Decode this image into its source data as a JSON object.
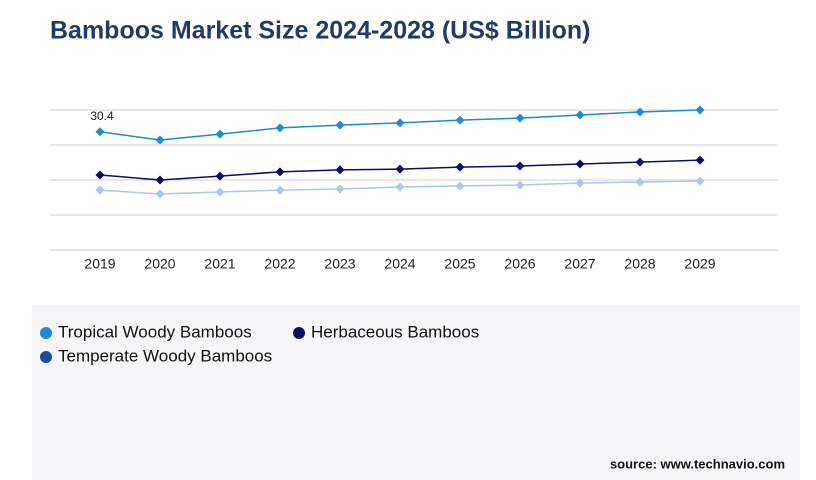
{
  "chart_data": {
    "type": "line",
    "title": "Bamboos Market Size 2024-2028 (US$ Billion)",
    "source": "source: www.technavio.com",
    "categories": [
      "2019",
      "2020",
      "2021",
      "2022",
      "2023",
      "2024",
      "2025",
      "2026",
      "2027",
      "2028",
      "2029"
    ],
    "series": [
      {
        "name": "Tropical Woody Bamboos",
        "color": "#1f8ad8",
        "legend_color": "#1f8ad8",
        "values": [
          30.4,
          28.3,
          29.8,
          31.4,
          32.1,
          32.7,
          33.4,
          33.9,
          34.7,
          35.5,
          36.0
        ]
      },
      {
        "name": "Herbaceous Bamboos",
        "color": "#0d0d6b",
        "legend_color": "#0d0d6b",
        "values": [
          19.3,
          18.0,
          19.0,
          20.1,
          20.6,
          20.8,
          21.3,
          21.6,
          22.1,
          22.6,
          23.1
        ]
      },
      {
        "name": "Temperate Woody Bamboos",
        "color": "#a8c8f5",
        "legend_color": "#1a4fa0",
        "values": [
          15.4,
          14.4,
          14.9,
          15.4,
          15.7,
          16.2,
          16.5,
          16.7,
          17.2,
          17.5,
          17.7
        ]
      }
    ],
    "ylim": [
      0,
      36
    ],
    "yticks": [
      0,
      9,
      18,
      27,
      36
    ],
    "grid": true
  }
}
